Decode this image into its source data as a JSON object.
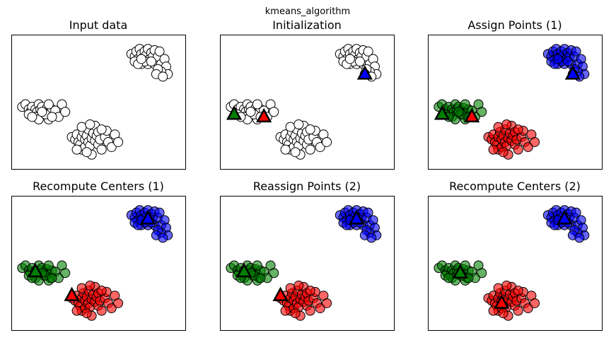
{
  "figure": {
    "suptitle": "kmeans_algorithm"
  },
  "colors": {
    "unassigned_fill": "#ffffff",
    "cluster_0": "#0000ff",
    "cluster_1": "#008000",
    "cluster_2": "#ff0000",
    "edge": "#000000"
  },
  "chart_data": {
    "type": "scatter",
    "xlim": [
      0,
      100
    ],
    "ylim": [
      0,
      100
    ],
    "clusters": [
      {
        "points": [
          [
            70,
            88
          ],
          [
            72,
            86
          ],
          [
            73,
            90
          ],
          [
            74,
            84
          ],
          [
            75,
            92
          ],
          [
            76,
            88
          ],
          [
            77,
            85
          ],
          [
            78,
            90
          ],
          [
            79,
            87
          ],
          [
            80,
            92
          ],
          [
            81,
            84
          ],
          [
            82,
            89
          ],
          [
            83,
            86
          ],
          [
            84,
            91
          ],
          [
            72,
            82
          ],
          [
            76,
            80
          ],
          [
            80,
            80
          ],
          [
            84,
            80
          ],
          [
            86,
            86
          ],
          [
            87,
            90
          ],
          [
            88,
            80
          ],
          [
            90,
            84
          ],
          [
            91,
            78
          ],
          [
            92,
            72
          ],
          [
            88,
            74
          ],
          [
            86,
            76
          ],
          [
            85,
            72
          ],
          [
            89,
            70
          ],
          [
            78,
            82
          ],
          [
            82,
            82
          ],
          [
            74,
            80
          ],
          [
            76,
            84
          ]
        ]
      },
      {
        "points": [
          [
            4,
            46
          ],
          [
            6,
            48
          ],
          [
            8,
            44
          ],
          [
            9,
            42
          ],
          [
            10,
            46
          ],
          [
            11,
            40
          ],
          [
            12,
            44
          ],
          [
            13,
            42
          ],
          [
            14,
            48
          ],
          [
            15,
            44
          ],
          [
            16,
            46
          ],
          [
            17,
            40
          ],
          [
            18,
            43
          ],
          [
            19,
            45
          ],
          [
            20,
            41
          ],
          [
            21,
            38
          ],
          [
            22,
            44
          ],
          [
            24,
            43
          ],
          [
            26,
            38
          ],
          [
            28,
            48
          ],
          [
            30,
            42
          ],
          [
            12,
            38
          ],
          [
            14,
            36
          ],
          [
            8,
            40
          ],
          [
            20,
            36
          ],
          [
            10,
            38
          ],
          [
            18,
            40
          ],
          [
            16,
            42
          ],
          [
            22,
            38
          ],
          [
            20,
            48
          ]
        ]
      },
      {
        "points": [
          [
            34,
            22
          ],
          [
            36,
            20
          ],
          [
            37,
            24
          ],
          [
            38,
            18
          ],
          [
            39,
            16
          ],
          [
            40,
            22
          ],
          [
            40,
            12
          ],
          [
            41,
            26
          ],
          [
            42,
            20
          ],
          [
            42,
            14
          ],
          [
            43,
            23
          ],
          [
            44,
            18
          ],
          [
            44,
            28
          ],
          [
            45,
            15
          ],
          [
            46,
            21
          ],
          [
            46,
            8
          ],
          [
            47,
            25
          ],
          [
            48,
            19
          ],
          [
            48,
            31
          ],
          [
            49,
            23
          ],
          [
            50,
            16
          ],
          [
            50,
            26
          ],
          [
            51,
            20
          ],
          [
            52,
            12
          ],
          [
            54,
            22
          ],
          [
            55,
            27
          ],
          [
            56,
            18
          ],
          [
            58,
            14
          ],
          [
            60,
            24
          ],
          [
            62,
            18
          ],
          [
            37,
            12
          ],
          [
            43,
            10
          ],
          [
            52,
            28
          ],
          [
            40,
            30
          ],
          [
            45,
            32
          ]
        ]
      }
    ],
    "panels": [
      {
        "title": "Input data",
        "assigned": false,
        "centers": []
      },
      {
        "title": "Initialization",
        "assigned": false,
        "centers": [
          {
            "cluster": 0,
            "x": 85,
            "y": 72
          },
          {
            "cluster": 1,
            "x": 6,
            "y": 40
          },
          {
            "cluster": 2,
            "x": 24,
            "y": 38
          }
        ]
      },
      {
        "title": "Assign Points (1)",
        "assigned": true,
        "centers": [
          {
            "cluster": 0,
            "x": 85,
            "y": 72
          },
          {
            "cluster": 1,
            "x": 6,
            "y": 40
          },
          {
            "cluster": 2,
            "x": 24,
            "y": 38
          }
        ]
      },
      {
        "title": "Recompute Centers (1)",
        "assigned": true,
        "centers": [
          {
            "cluster": 0,
            "x": 80,
            "y": 85
          },
          {
            "cluster": 1,
            "x": 12,
            "y": 43
          },
          {
            "cluster": 2,
            "x": 34,
            "y": 24
          }
        ]
      },
      {
        "title": "Reassign Points (2)",
        "assigned": true,
        "centers": [
          {
            "cluster": 0,
            "x": 80,
            "y": 85
          },
          {
            "cluster": 1,
            "x": 12,
            "y": 43
          },
          {
            "cluster": 2,
            "x": 34,
            "y": 24
          }
        ]
      },
      {
        "title": "Recompute Centers (2)",
        "assigned": true,
        "centers": [
          {
            "cluster": 0,
            "x": 80,
            "y": 85
          },
          {
            "cluster": 1,
            "x": 17,
            "y": 42
          },
          {
            "cluster": 2,
            "x": 42,
            "y": 18
          }
        ]
      }
    ]
  }
}
